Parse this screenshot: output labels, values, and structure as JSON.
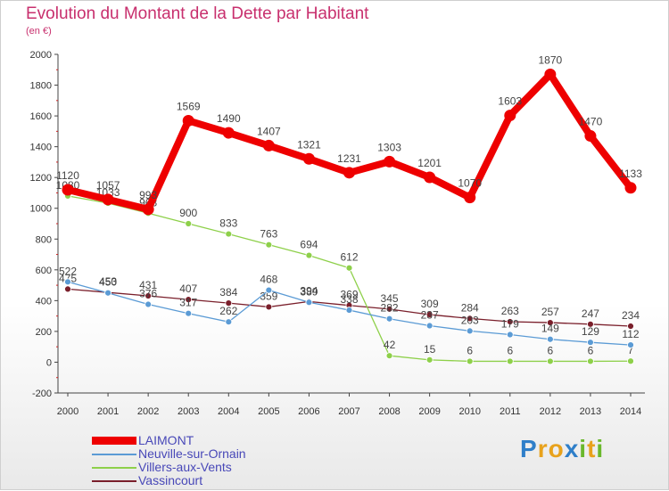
{
  "chart_data": {
    "type": "line",
    "title": "Evolution du Montant de la Dette par Habitant",
    "subtitle": "(en €)",
    "xlabel": "",
    "ylabel": "",
    "ylim": [
      -200,
      2000
    ],
    "yticks": [
      -200,
      0,
      200,
      400,
      600,
      800,
      1000,
      1200,
      1400,
      1600,
      1800,
      2000
    ],
    "categories": [
      "2000",
      "2001",
      "2002",
      "2003",
      "2004",
      "2005",
      "2006",
      "2007",
      "2008",
      "2009",
      "2010",
      "2011",
      "2012",
      "2013",
      "2014"
    ],
    "series": [
      {
        "name": "Vassincourt",
        "color": "#7a1f2b",
        "values": [
          475,
          453,
          431,
          407,
          384,
          359,
          394,
          369,
          345,
          309,
          284,
          263,
          257,
          247,
          234
        ]
      },
      {
        "name": "Villers-aux-Vents",
        "color": "#8ed04a",
        "values": [
          1080,
          1033,
          968,
          900,
          833,
          763,
          694,
          612,
          42,
          15,
          6,
          6,
          6,
          6,
          7
        ]
      },
      {
        "name": "Neuville-sur-Ornain",
        "color": "#5b9bd5",
        "values": [
          522,
          450,
          376,
          317,
          262,
          468,
          389,
          338,
          282,
          237,
          203,
          179,
          149,
          129,
          112
        ]
      },
      {
        "name": "LAIMONT",
        "color": "#ee0000",
        "values": [
          1120,
          1057,
          993,
          1569,
          1490,
          1407,
          1321,
          1231,
          1303,
          1201,
          1070,
          1603,
          1870,
          1470,
          1133
        ]
      }
    ],
    "legend_order": [
      "LAIMONT",
      "Neuville-sur-Ornain",
      "Villers-aux-Vents",
      "Vassincourt"
    ],
    "legend_position": "bottom-left",
    "grid": false
  },
  "branding": {
    "logo_parts": [
      "P",
      "r",
      "o",
      "x",
      "i",
      "t",
      "i"
    ]
  }
}
